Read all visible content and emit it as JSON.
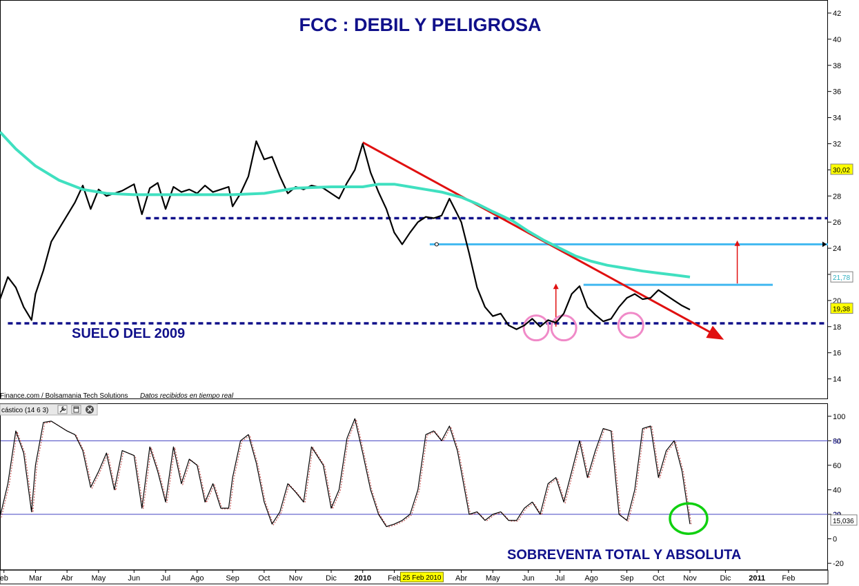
{
  "title": "FCC : DEBIL Y PELIGROSA",
  "annotations": {
    "floor_label": "SUELO DEL 2009",
    "oversold_label": "SOBREVENTA TOTAL Y ABSOLUTA"
  },
  "credit": {
    "source": "Finance.com / Bolsamania Tech Solutions",
    "realtime": "Datos recibidos en tiempo real"
  },
  "indicator_panel": {
    "label": "cástico (14 6 3)",
    "tool_icons": [
      "wrench-icon",
      "window-icon",
      "close-icon"
    ]
  },
  "colors": {
    "price": "#000000",
    "moving_average": "#40e0c0",
    "trendline": "#e01010",
    "support_resistance_dotted": "#10108a",
    "resistance_cyan": "#40b8f0",
    "circles": "#f08ac8",
    "oversold_circle": "#10d010",
    "title_text": "#10108a",
    "ref_lines": "#4040c0"
  },
  "chart_data": [
    {
      "type": "line",
      "panel": "price",
      "title": "FCC : DEBIL Y PELIGROSA",
      "ylim": [
        12.5,
        43
      ],
      "yticks": [
        14,
        16,
        18,
        20,
        22,
        24,
        26,
        28,
        30,
        32,
        34,
        36,
        38,
        40,
        42
      ],
      "x_range": [
        2009.08,
        2011.18
      ],
      "x_labels": [
        "eb",
        "Mar",
        "Abr",
        "May",
        "Jun",
        "Jul",
        "Ago",
        "Sep",
        "Oct",
        "Nov",
        "Dic",
        "2010",
        "Feb",
        "Abr",
        "May",
        "Jun",
        "Jul",
        "Ago",
        "Sep",
        "Oct",
        "Nov",
        "Dic",
        "2011",
        "Feb"
      ],
      "x_label_positions": [
        2009.09,
        2009.17,
        2009.25,
        2009.33,
        2009.42,
        2009.5,
        2009.58,
        2009.67,
        2009.75,
        2009.83,
        2009.92,
        2010.0,
        2010.08,
        2010.25,
        2010.33,
        2010.42,
        2010.5,
        2010.58,
        2010.67,
        2010.75,
        2010.83,
        2010.92,
        2011.0,
        2011.08
      ],
      "cursor_date_label": "25 Feb 2010",
      "cursor_date_position": 2010.15,
      "value_badges": [
        {
          "value": "30,02",
          "y": 30.02,
          "style": "yellow"
        },
        {
          "value": "21,78",
          "y": 21.78,
          "style": "teal"
        },
        {
          "value": "19,38",
          "y": 19.38,
          "style": "yellow"
        }
      ],
      "series": [
        {
          "name": "",
          "role": "price",
          "x": [
            2009.08,
            2009.1,
            2009.12,
            2009.14,
            2009.16,
            2009.17,
            2009.19,
            2009.21,
            2009.23,
            2009.25,
            2009.27,
            2009.29,
            2009.31,
            2009.33,
            2009.35,
            2009.37,
            2009.39,
            2009.42,
            2009.44,
            2009.46,
            2009.48,
            2009.5,
            2009.52,
            2009.54,
            2009.56,
            2009.58,
            2009.6,
            2009.62,
            2009.64,
            2009.66,
            2009.67,
            2009.69,
            2009.71,
            2009.73,
            2009.75,
            2009.77,
            2009.79,
            2009.81,
            2009.83,
            2009.85,
            2009.87,
            2009.9,
            2009.92,
            2009.94,
            2009.96,
            2009.98,
            2010.0,
            2010.02,
            2010.04,
            2010.06,
            2010.08,
            2010.1,
            2010.12,
            2010.14,
            2010.16,
            2010.18,
            2010.2,
            2010.22,
            2010.24,
            2010.25,
            2010.27,
            2010.29,
            2010.31,
            2010.33,
            2010.35,
            2010.37,
            2010.39,
            2010.41,
            2010.43,
            2010.45,
            2010.47,
            2010.49,
            2010.51,
            2010.53,
            2010.55,
            2010.57,
            2010.59,
            2010.61,
            2010.63,
            2010.65,
            2010.67,
            2010.69,
            2010.71,
            2010.73,
            2010.75,
            2010.77,
            2010.79,
            2010.81,
            2010.83
          ],
          "y": [
            20.1,
            21.8,
            21.0,
            19.5,
            18.5,
            20.5,
            22.3,
            24.5,
            25.5,
            26.5,
            27.5,
            28.8,
            27.0,
            28.5,
            28.0,
            28.2,
            28.4,
            28.9,
            26.6,
            28.6,
            29.0,
            27.0,
            28.7,
            28.3,
            28.5,
            28.2,
            28.8,
            28.3,
            28.5,
            28.7,
            27.2,
            28.2,
            29.5,
            32.2,
            30.8,
            31.0,
            29.5,
            28.2,
            28.7,
            28.5,
            28.8,
            28.6,
            28.2,
            27.8,
            29.0,
            30.0,
            32.0,
            29.8,
            28.3,
            27.0,
            25.2,
            24.3,
            25.2,
            26.0,
            26.4,
            26.3,
            26.5,
            27.8,
            26.6,
            26.0,
            23.6,
            21.0,
            19.5,
            18.8,
            19.0,
            18.1,
            17.8,
            18.1,
            18.6,
            18.0,
            18.5,
            18.3,
            19.0,
            20.5,
            21.1,
            19.5,
            18.9,
            18.4,
            18.6,
            19.5,
            20.2,
            20.5,
            20.1,
            20.2,
            20.8,
            20.4,
            20.0,
            19.6,
            19.3
          ]
        },
        {
          "name": "",
          "role": "moving_average",
          "x": [
            2009.08,
            2009.12,
            2009.17,
            2009.23,
            2009.29,
            2009.35,
            2009.42,
            2009.5,
            2009.58,
            2009.67,
            2009.75,
            2009.83,
            2009.92,
            2010.0,
            2010.04,
            2010.08,
            2010.12,
            2010.16,
            2010.2,
            2010.25,
            2010.29,
            2010.33,
            2010.38,
            2010.42,
            2010.46,
            2010.5,
            2010.54,
            2010.58,
            2010.62,
            2010.67,
            2010.71,
            2010.75,
            2010.79,
            2010.83
          ],
          "y": [
            32.9,
            31.6,
            30.3,
            29.2,
            28.5,
            28.2,
            28.1,
            28.1,
            28.1,
            28.1,
            28.2,
            28.6,
            28.7,
            28.7,
            28.9,
            28.9,
            28.7,
            28.5,
            28.3,
            27.9,
            27.4,
            26.8,
            26.1,
            25.3,
            24.6,
            24.0,
            23.4,
            23.0,
            22.7,
            22.45,
            22.25,
            22.1,
            21.95,
            21.8
          ]
        }
      ],
      "overlays": {
        "trendline": {
          "x": [
            2010.0,
            2010.91
          ],
          "y": [
            32.1,
            17.1
          ]
        },
        "dotted_support_2009": {
          "y": 18.25,
          "x": [
            2009.1,
            2011.18
          ]
        },
        "dotted_resistance": {
          "y": 26.3,
          "x": [
            2009.45,
            2011.18
          ]
        },
        "cyan_resistance_upper": {
          "y": 24.3,
          "x": [
            2010.17,
            2011.18
          ]
        },
        "cyan_resistance_lower": {
          "y": 21.2,
          "x": [
            2010.56,
            2011.04
          ]
        },
        "up_arrows": [
          {
            "x": 2010.49,
            "from": 18.0,
            "to": 21.3
          },
          {
            "x": 2010.95,
            "from": 21.3,
            "to": 24.6
          }
        ],
        "pink_circles": [
          {
            "x": 2010.44,
            "y": 17.9
          },
          {
            "x": 2010.51,
            "y": 17.9
          },
          {
            "x": 2010.68,
            "y": 18.1
          }
        ]
      }
    },
    {
      "type": "line",
      "panel": "indicator",
      "ylim": [
        -25,
        110
      ],
      "yticks": [
        -20,
        0,
        20,
        40,
        60,
        80,
        100
      ],
      "reference_lines": [
        80,
        20
      ],
      "value_badges": [
        {
          "value": "15,036",
          "y": 15.036
        }
      ],
      "x_range": [
        2009.08,
        2011.18
      ],
      "series": [
        {
          "name": "",
          "role": "stochastic",
          "x": [
            2009.08,
            2009.1,
            2009.12,
            2009.14,
            2009.16,
            2009.17,
            2009.19,
            2009.21,
            2009.23,
            2009.25,
            2009.27,
            2009.29,
            2009.31,
            2009.33,
            2009.35,
            2009.37,
            2009.39,
            2009.42,
            2009.44,
            2009.46,
            2009.48,
            2009.5,
            2009.52,
            2009.54,
            2009.56,
            2009.58,
            2009.6,
            2009.62,
            2009.64,
            2009.66,
            2009.67,
            2009.69,
            2009.71,
            2009.73,
            2009.75,
            2009.77,
            2009.79,
            2009.81,
            2009.83,
            2009.85,
            2009.87,
            2009.9,
            2009.92,
            2009.94,
            2009.96,
            2009.98,
            2010.0,
            2010.02,
            2010.04,
            2010.06,
            2010.08,
            2010.1,
            2010.12,
            2010.14,
            2010.16,
            2010.18,
            2010.2,
            2010.22,
            2010.24,
            2010.25,
            2010.27,
            2010.29,
            2010.31,
            2010.33,
            2010.35,
            2010.37,
            2010.39,
            2010.41,
            2010.43,
            2010.45,
            2010.47,
            2010.49,
            2010.51,
            2010.53,
            2010.55,
            2010.57,
            2010.59,
            2010.61,
            2010.63,
            2010.65,
            2010.67,
            2010.69,
            2010.71,
            2010.73,
            2010.75,
            2010.77,
            2010.79,
            2010.81,
            2010.83
          ],
          "y": [
            18,
            45,
            88,
            70,
            22,
            60,
            95,
            96,
            92,
            88,
            85,
            72,
            42,
            55,
            70,
            40,
            72,
            68,
            25,
            75,
            55,
            30,
            75,
            45,
            65,
            60,
            30,
            45,
            25,
            25,
            50,
            80,
            85,
            62,
            30,
            12,
            22,
            45,
            38,
            30,
            75,
            60,
            25,
            40,
            82,
            98,
            70,
            40,
            20,
            10,
            12,
            15,
            20,
            40,
            85,
            88,
            80,
            92,
            72,
            55,
            20,
            22,
            15,
            20,
            22,
            15,
            15,
            25,
            30,
            20,
            45,
            50,
            30,
            55,
            80,
            50,
            72,
            90,
            88,
            20,
            15,
            40,
            90,
            92,
            50,
            72,
            80,
            55,
            12
          ]
        }
      ]
    }
  ]
}
